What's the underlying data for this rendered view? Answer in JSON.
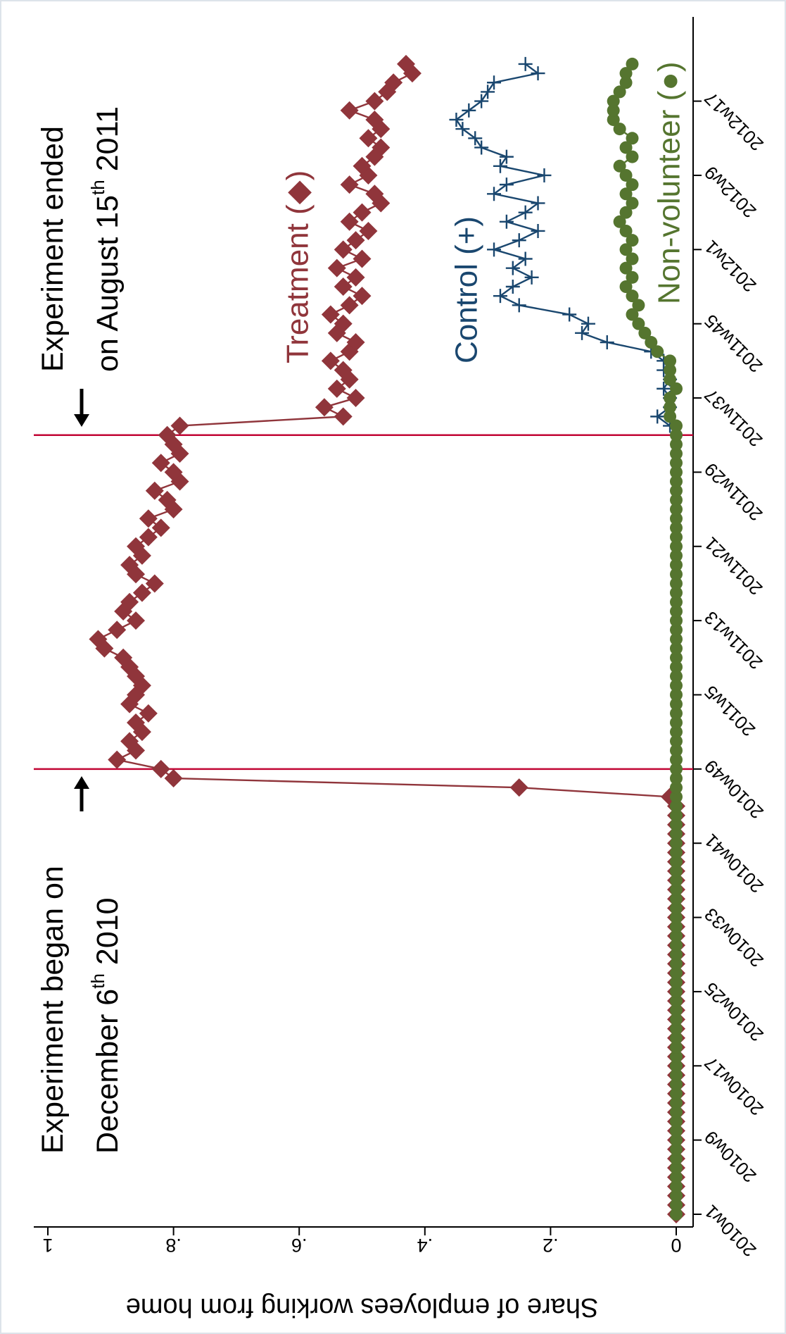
{
  "chart_data": {
    "type": "line",
    "ylabel": "Share of employees working from home",
    "categories": [
      "2010w1",
      null,
      null,
      null,
      null,
      null,
      null,
      null,
      "2010w9",
      null,
      null,
      null,
      null,
      null,
      null,
      null,
      "2010w17",
      null,
      null,
      null,
      null,
      null,
      null,
      null,
      "2010w25",
      null,
      null,
      null,
      null,
      null,
      null,
      null,
      "2010w33",
      null,
      null,
      null,
      null,
      null,
      null,
      null,
      "2010w41",
      null,
      null,
      null,
      null,
      null,
      null,
      null,
      "2010w49",
      null,
      null,
      null,
      null,
      null,
      null,
      null,
      "2011w5",
      null,
      null,
      null,
      null,
      null,
      null,
      null,
      "2011w13",
      null,
      null,
      null,
      null,
      null,
      null,
      null,
      "2011w21",
      null,
      null,
      null,
      null,
      null,
      null,
      null,
      "2011w29",
      null,
      null,
      null,
      null,
      null,
      null,
      null,
      "2011w37",
      null,
      null,
      null,
      null,
      null,
      null,
      null,
      "2011w45",
      null,
      null,
      null,
      null,
      null,
      null,
      null,
      "2012w1",
      null,
      null,
      null,
      null,
      null,
      null,
      null,
      "2012w9",
      null,
      null,
      null,
      null,
      null,
      null,
      null,
      "2012w17",
      null,
      null,
      null,
      null
    ],
    "series": [
      {
        "name": "Treatment (◆)",
        "color": "#90353b",
        "marker": "diamond",
        "values": [
          0,
          0,
          0,
          0,
          0,
          0,
          0,
          0,
          0,
          0,
          0,
          0,
          0,
          0,
          0,
          0,
          0,
          0,
          0,
          0,
          0,
          0,
          0,
          0,
          0,
          0,
          0,
          0,
          0,
          0,
          0,
          0,
          0,
          0,
          0,
          0,
          0,
          0,
          0,
          0,
          0,
          0,
          0,
          0,
          0,
          0.01,
          0.25,
          0.8,
          0.82,
          0.89,
          0.86,
          0.87,
          0.85,
          0.86,
          0.84,
          0.87,
          0.86,
          0.85,
          0.86,
          0.87,
          0.88,
          0.91,
          0.92,
          0.89,
          0.86,
          0.88,
          0.87,
          0.85,
          0.83,
          0.86,
          0.87,
          0.85,
          0.86,
          0.84,
          0.82,
          0.84,
          0.8,
          0.81,
          0.83,
          0.79,
          0.8,
          0.82,
          0.79,
          0.8,
          0.81,
          0.79,
          0.53,
          0.56,
          0.51,
          0.54,
          0.52,
          0.53,
          0.55,
          0.52,
          0.51,
          0.54,
          0.53,
          0.55,
          0.52,
          0.5,
          0.53,
          0.51,
          0.54,
          0.5,
          0.53,
          0.51,
          0.49,
          0.52,
          0.5,
          0.47,
          0.48,
          0.52,
          0.49,
          0.5,
          0.48,
          0.47,
          0.49,
          0.47,
          0.48,
          0.52,
          0.48,
          0.46,
          0.45,
          0.42,
          0.43
        ]
      },
      {
        "name": "Control (+)",
        "color": "#1a476f",
        "marker": "plus",
        "values": [
          null,
          null,
          null,
          null,
          null,
          null,
          null,
          null,
          null,
          null,
          null,
          null,
          null,
          null,
          null,
          null,
          null,
          null,
          null,
          null,
          null,
          null,
          null,
          null,
          null,
          null,
          null,
          null,
          null,
          null,
          null,
          null,
          null,
          null,
          null,
          null,
          null,
          null,
          null,
          null,
          null,
          null,
          null,
          null,
          null,
          null,
          null,
          null,
          null,
          null,
          null,
          null,
          null,
          null,
          null,
          null,
          null,
          null,
          null,
          null,
          null,
          null,
          null,
          null,
          null,
          null,
          null,
          null,
          null,
          null,
          null,
          null,
          null,
          null,
          null,
          null,
          null,
          null,
          null,
          null,
          null,
          null,
          null,
          null,
          null,
          0.01,
          0.03,
          0.01,
          0.01,
          0.02,
          0.01,
          0.02,
          0.02,
          0.04,
          0.11,
          0.15,
          0.14,
          0.17,
          0.25,
          0.28,
          0.26,
          0.23,
          0.26,
          0.24,
          0.29,
          0.25,
          0.22,
          0.27,
          0.24,
          0.22,
          0.29,
          0.27,
          0.21,
          0.28,
          0.27,
          0.31,
          0.32,
          0.34,
          0.35,
          0.33,
          0.31,
          0.3,
          0.29,
          0.22,
          0.24
        ]
      },
      {
        "name": "Non-volunteer (●)",
        "color": "#55752f",
        "marker": "circle",
        "values": [
          0,
          0,
          0,
          0,
          0,
          0,
          0,
          0,
          0,
          0,
          0,
          0,
          0,
          0,
          0,
          0,
          0,
          0,
          0,
          0,
          0,
          0,
          0,
          0,
          0,
          0,
          0,
          0,
          0,
          0,
          0,
          0,
          0,
          0,
          0,
          0,
          0,
          0,
          0,
          0,
          0,
          0,
          0,
          0,
          0,
          0,
          0,
          0,
          0,
          0,
          0,
          0,
          0,
          0,
          0,
          0,
          0,
          0,
          0,
          0,
          0,
          0,
          0,
          0,
          0,
          0,
          0,
          0,
          0,
          0,
          0,
          0,
          0,
          0,
          0,
          0,
          0,
          0,
          0,
          0,
          0,
          0,
          0,
          0,
          0,
          0,
          0.01,
          0.01,
          0.01,
          0,
          0.01,
          0.01,
          0.01,
          0.03,
          0.04,
          0.05,
          0.06,
          0.07,
          0.06,
          0.07,
          0.08,
          0.07,
          0.08,
          0.07,
          0.08,
          0.07,
          0.08,
          0.09,
          0.08,
          0.07,
          0.08,
          0.07,
          0.08,
          0.09,
          0.07,
          0.08,
          0.07,
          0.09,
          0.1,
          0.1,
          0.1,
          0.09,
          0.08,
          0.08,
          0.07
        ]
      }
    ],
    "ylim": [
      0,
      1
    ],
    "yticks": [
      0,
      {
        "value": 0.2,
        "label": ".2"
      },
      {
        "value": 0.4,
        "label": ".4"
      },
      {
        "value": 0.6,
        "label": ".6"
      },
      {
        "value": 0.8,
        "label": ".8"
      },
      1
    ],
    "vlines": [
      48,
      84
    ],
    "vline_color": "#c10534",
    "annotations": [
      {
        "lines": [
          [
            "Experiment began on"
          ],
          [
            "December 6",
            "th",
            "2010"
          ]
        ]
      },
      {
        "lines": [
          [
            "Experiment ended"
          ],
          [
            "on August 15",
            "th",
            "2011"
          ]
        ]
      }
    ]
  }
}
